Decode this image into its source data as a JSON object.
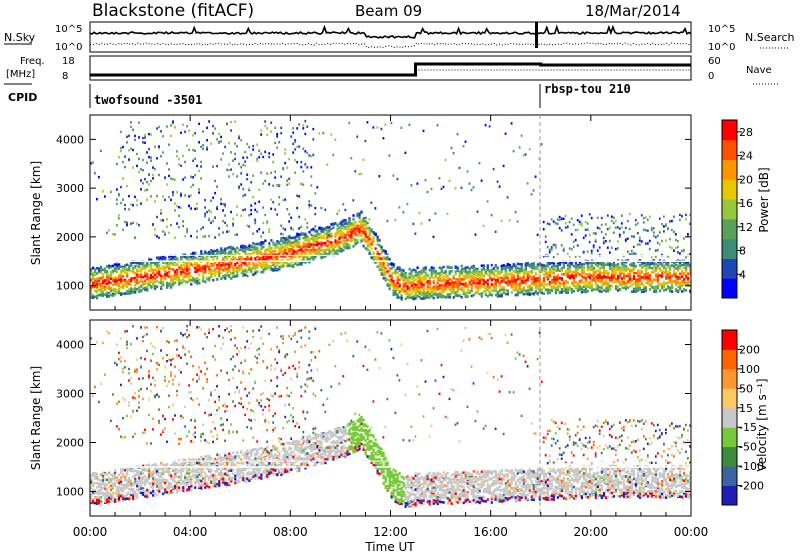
{
  "header": {
    "station": "Blackstone (fitACF)",
    "beam": "Beam 09",
    "date": "18/Mar/2014"
  },
  "status_panels": {
    "nsky_label": "N.Sky",
    "nsearch_label": "N.Search",
    "noise_ticks": [
      "10^5",
      "10^0"
    ],
    "freq_label_1": "Freq.",
    "freq_label_2": "[MHz]",
    "freq_ticks_left": [
      "18",
      "8"
    ],
    "nave_label": "Nave",
    "nave_ticks_right": [
      "60",
      "0"
    ],
    "cpid_label": "CPID",
    "cpid_1": "twofsound -3501",
    "cpid_2": "rbsp-tou 210"
  },
  "colors": {
    "power_scale": [
      "#0000ff",
      "#1e46b4",
      "#3c8c78",
      "#5aa05a",
      "#96c83c",
      "#e6c800",
      "#ff9600",
      "#ff5000",
      "#ff0000"
    ],
    "velocity_scale": [
      "#1e1eb4",
      "#3c64a0",
      "#3c8c3c",
      "#78c83c",
      "#c8c8c8",
      "#ffc864",
      "#ff9632",
      "#ff6400",
      "#ff0000"
    ]
  },
  "chart_data": [
    {
      "type": "heatmap",
      "title": "",
      "ylabel": "Slant Range [km]",
      "xlabel": "",
      "x_ticks": [
        "00:00",
        "04:00",
        "08:00",
        "12:00",
        "16:00",
        "20:00",
        "00:00"
      ],
      "y_ticks": [
        1000,
        2000,
        3000,
        4000
      ],
      "ylim": [
        500,
        4500
      ],
      "colorbar_label": "Power [dB]",
      "colorbar_ticks": [
        4,
        8,
        12,
        16,
        20,
        24,
        28
      ],
      "colorbar_range": [
        0,
        30
      ],
      "main_band_km": {
        "hours": [
          0,
          2,
          4,
          6,
          8,
          10,
          10.8,
          11.5,
          12,
          12.5,
          13,
          16,
          18,
          20,
          22,
          24
        ],
        "values": [
          1000,
          1150,
          1300,
          1450,
          1650,
          1950,
          2150,
          1600,
          1100,
          950,
          1000,
          1050,
          1100,
          1150,
          1150,
          1150
        ]
      }
    },
    {
      "type": "heatmap",
      "title": "",
      "ylabel": "Slant Range [km]",
      "xlabel": "Time UT",
      "x_ticks": [
        "00:00",
        "04:00",
        "08:00",
        "12:00",
        "16:00",
        "20:00",
        "00:00"
      ],
      "y_ticks": [
        1000,
        2000,
        3000,
        4000
      ],
      "ylim": [
        500,
        4500
      ],
      "colorbar_label": "Velocity [m s⁻¹]",
      "colorbar_ticks": [
        200,
        100,
        50,
        15,
        -15,
        -50,
        -100,
        -200
      ]
    }
  ]
}
